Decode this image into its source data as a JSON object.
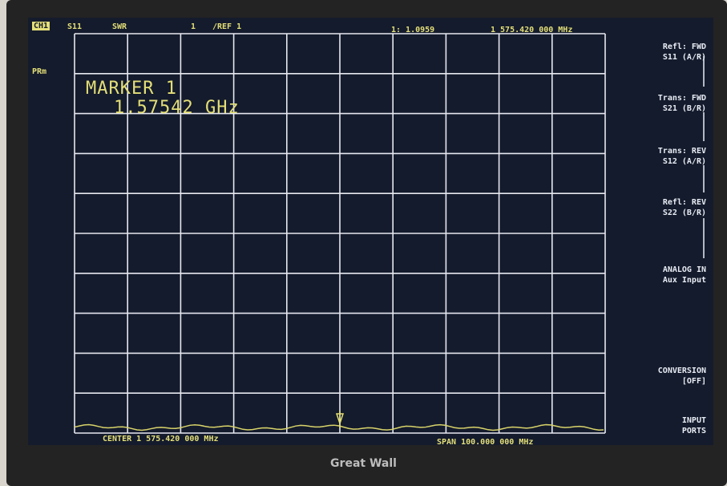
{
  "header": {
    "channel": "CH1",
    "parameter": "S11",
    "format": "SWR",
    "scale": "1",
    "reference": "/REF 1",
    "marker_readout": "1: 1.0959",
    "marker_frequency": "1 575.420 000 MHz"
  },
  "side_label": "PRm",
  "marker": {
    "title": "MARKER 1",
    "frequency": "1.57542 GHz"
  },
  "footer": {
    "center": "CENTER 1 575.420 000 MHz",
    "span": "SPAN 100.000 000 MHz"
  },
  "softkeys": [
    [
      "Refl: FWD",
      "S11 (A/R)"
    ],
    [
      "Trans: FWD",
      "S21 (B/R)"
    ],
    [
      "Trans: REV",
      "S12 (A/R)"
    ],
    [
      "Refl: REV",
      "S22 (B/R)"
    ],
    [
      "ANALOG IN",
      "Aux Input"
    ],
    [
      "CONVERSION",
      "[OFF]"
    ],
    [
      "INPUT",
      "PORTS"
    ]
  ],
  "brand": "Great Wall"
}
